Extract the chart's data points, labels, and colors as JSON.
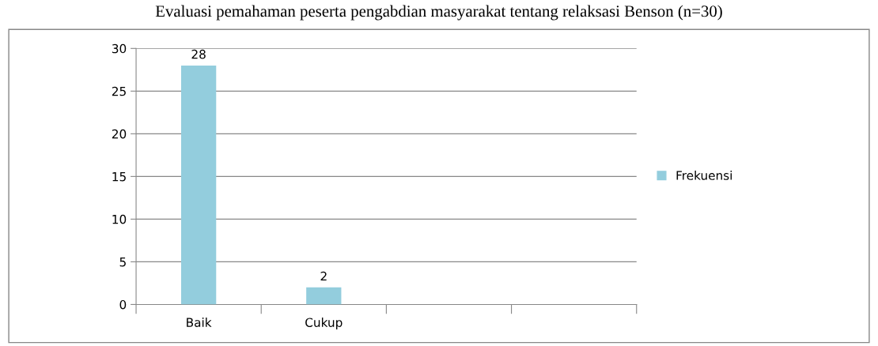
{
  "chart_data": {
    "type": "bar",
    "title": "Evaluasi pemahaman peserta pengabdian masyarakat tentang relaksasi Benson (n=30)",
    "categories": [
      "Baik",
      "Cukup",
      null,
      null
    ],
    "series": [
      {
        "name": "Frekuensi",
        "color": "#93cddd",
        "values": [
          28,
          2,
          null,
          null
        ]
      }
    ],
    "ylim": [
      0,
      30
    ],
    "yticks": [
      0,
      5,
      10,
      15,
      20,
      25,
      30
    ],
    "grid": "y",
    "legend": "right",
    "data_labels": true
  }
}
